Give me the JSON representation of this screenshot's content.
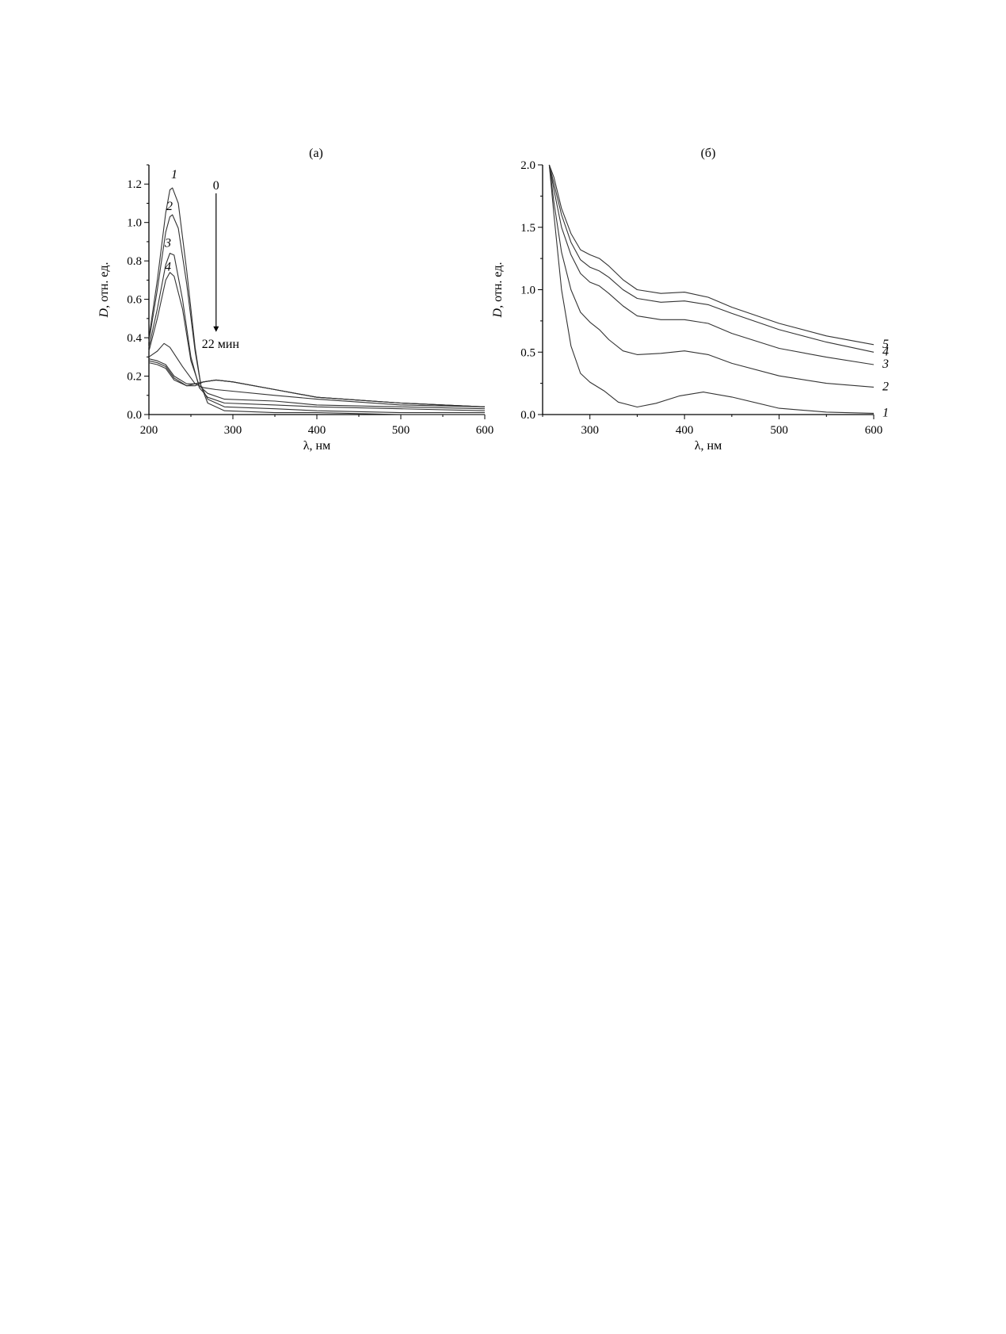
{
  "chart_data": [
    {
      "type": "line",
      "panel_label": "(а)",
      "xlabel": "λ, нм",
      "ylabel_italic": "D",
      "ylabel_rest": ", отн. ед.",
      "xlim": [
        200,
        600
      ],
      "ylim": [
        0,
        1.3
      ],
      "xticks": [
        200,
        300,
        400,
        500,
        600
      ],
      "yticks": [
        0.0,
        0.2,
        0.4,
        0.6,
        0.8,
        1.0,
        1.2
      ],
      "ytick_labels": [
        "0.0",
        "0.2",
        "0.4",
        "0.6",
        "0.8",
        "1.0",
        "1.2"
      ],
      "grid": false,
      "annotation": {
        "start": "0",
        "end": "22 мин"
      },
      "series": [
        {
          "label": "1",
          "x": [
            200,
            210,
            220,
            225,
            228,
            235,
            245,
            255,
            262,
            270,
            290,
            350,
            400,
            500,
            600
          ],
          "y": [
            0.4,
            0.7,
            1.05,
            1.17,
            1.18,
            1.1,
            0.75,
            0.35,
            0.15,
            0.06,
            0.02,
            0.01,
            0.01,
            0.0,
            0.0
          ]
        },
        {
          "label": "2",
          "x": [
            200,
            210,
            220,
            225,
            228,
            235,
            245,
            255,
            262,
            270,
            290,
            350,
            400,
            500,
            600
          ],
          "y": [
            0.38,
            0.65,
            0.95,
            1.03,
            1.04,
            0.97,
            0.68,
            0.33,
            0.15,
            0.08,
            0.04,
            0.03,
            0.02,
            0.01,
            0.01
          ]
        },
        {
          "label": "3",
          "x": [
            200,
            210,
            220,
            225,
            230,
            240,
            250,
            260,
            270,
            290,
            350,
            400,
            500,
            600
          ],
          "y": [
            0.35,
            0.55,
            0.78,
            0.84,
            0.83,
            0.6,
            0.3,
            0.14,
            0.09,
            0.06,
            0.05,
            0.04,
            0.03,
            0.02
          ]
        },
        {
          "label": "4",
          "x": [
            200,
            210,
            220,
            225,
            230,
            240,
            250,
            260,
            270,
            290,
            350,
            400,
            500,
            600
          ],
          "y": [
            0.33,
            0.5,
            0.7,
            0.74,
            0.72,
            0.55,
            0.28,
            0.15,
            0.11,
            0.08,
            0.07,
            0.05,
            0.04,
            0.03
          ]
        },
        {
          "label": "",
          "x": [
            200,
            210,
            218,
            225,
            240,
            255,
            265,
            280,
            350,
            400,
            500,
            600
          ],
          "y": [
            0.3,
            0.33,
            0.37,
            0.35,
            0.25,
            0.16,
            0.14,
            0.13,
            0.1,
            0.08,
            0.05,
            0.04
          ]
        },
        {
          "label": "",
          "x": [
            200,
            210,
            220,
            230,
            245,
            255,
            265,
            280,
            300,
            350,
            400,
            500,
            600
          ],
          "y": [
            0.29,
            0.28,
            0.26,
            0.2,
            0.16,
            0.16,
            0.17,
            0.18,
            0.17,
            0.13,
            0.09,
            0.06,
            0.04
          ]
        },
        {
          "label": "",
          "x": [
            200,
            210,
            220,
            230,
            245,
            255,
            265,
            280,
            300,
            350,
            400,
            500,
            600
          ],
          "y": [
            0.28,
            0.27,
            0.25,
            0.19,
            0.15,
            0.16,
            0.17,
            0.18,
            0.17,
            0.13,
            0.09,
            0.06,
            0.04
          ]
        },
        {
          "label": "",
          "x": [
            200,
            210,
            220,
            230,
            245,
            255,
            265,
            280,
            300,
            350,
            400,
            500,
            600
          ],
          "y": [
            0.27,
            0.26,
            0.24,
            0.18,
            0.15,
            0.15,
            0.17,
            0.18,
            0.17,
            0.13,
            0.09,
            0.06,
            0.04
          ]
        }
      ]
    },
    {
      "type": "line",
      "panel_label": "(б)",
      "xlabel": "λ, нм",
      "ylabel_italic": "D",
      "ylabel_rest": ", отн. ед.",
      "xlim": [
        250,
        600
      ],
      "ylim": [
        0,
        2.0
      ],
      "xticks": [
        300,
        400,
        500,
        600
      ],
      "yticks": [
        0.0,
        0.5,
        1.0,
        1.5,
        2.0
      ],
      "ytick_labels": [
        "0.0",
        "0.5",
        "1.0",
        "1.5",
        "2.0"
      ],
      "grid": false,
      "series": [
        {
          "label": "1",
          "x": [
            257,
            262,
            270,
            280,
            290,
            300,
            315,
            330,
            350,
            370,
            395,
            420,
            450,
            500,
            550,
            600
          ],
          "y": [
            2.0,
            1.6,
            1.0,
            0.55,
            0.33,
            0.26,
            0.19,
            0.1,
            0.06,
            0.09,
            0.15,
            0.18,
            0.14,
            0.05,
            0.02,
            0.01
          ]
        },
        {
          "label": "2",
          "x": [
            257,
            262,
            270,
            280,
            290,
            300,
            310,
            320,
            335,
            350,
            375,
            400,
            425,
            450,
            500,
            550,
            600
          ],
          "y": [
            2.0,
            1.7,
            1.3,
            1.0,
            0.82,
            0.74,
            0.68,
            0.6,
            0.51,
            0.48,
            0.49,
            0.51,
            0.48,
            0.41,
            0.31,
            0.25,
            0.22
          ]
        },
        {
          "label": "3",
          "x": [
            257,
            262,
            270,
            280,
            290,
            300,
            310,
            320,
            335,
            350,
            375,
            400,
            425,
            450,
            500,
            550,
            600
          ],
          "y": [
            2.0,
            1.8,
            1.5,
            1.28,
            1.13,
            1.06,
            1.03,
            0.97,
            0.87,
            0.79,
            0.76,
            0.76,
            0.73,
            0.65,
            0.53,
            0.46,
            0.4
          ]
        },
        {
          "label": "4",
          "x": [
            257,
            262,
            270,
            280,
            290,
            300,
            310,
            320,
            335,
            350,
            375,
            400,
            425,
            450,
            500,
            550,
            600
          ],
          "y": [
            2.0,
            1.85,
            1.6,
            1.38,
            1.24,
            1.18,
            1.15,
            1.1,
            1.0,
            0.93,
            0.9,
            0.91,
            0.88,
            0.81,
            0.68,
            0.58,
            0.5
          ]
        },
        {
          "label": "5",
          "x": [
            257,
            262,
            270,
            280,
            290,
            300,
            310,
            320,
            335,
            350,
            375,
            400,
            425,
            450,
            500,
            550,
            600
          ],
          "y": [
            2.0,
            1.9,
            1.65,
            1.45,
            1.32,
            1.28,
            1.25,
            1.19,
            1.08,
            1.0,
            0.97,
            0.98,
            0.94,
            0.86,
            0.73,
            0.63,
            0.56
          ]
        }
      ]
    }
  ]
}
